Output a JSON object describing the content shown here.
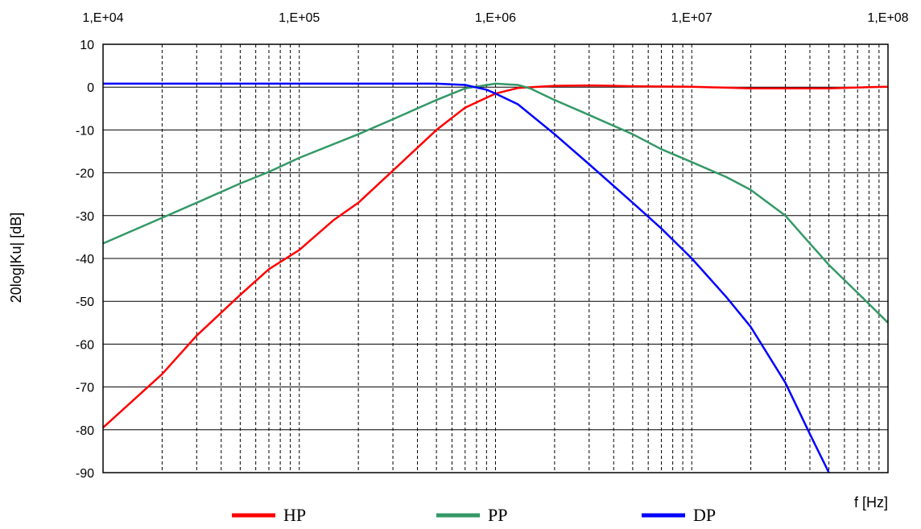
{
  "chart_data": {
    "type": "line",
    "x_scale": "log",
    "xlim": [
      10000,
      100000000
    ],
    "ylim": [
      -90,
      10
    ],
    "ylabel": "20log|Ku| [dB]",
    "xlabel": "f [Hz]",
    "x_ticks": [
      {
        "value": 10000,
        "label": "1,E+04"
      },
      {
        "value": 100000,
        "label": "1,E+05"
      },
      {
        "value": 1000000,
        "label": "1,E+06"
      },
      {
        "value": 10000000,
        "label": "1,E+07"
      },
      {
        "value": 100000000,
        "label": "1,E+08"
      }
    ],
    "y_ticks": [
      {
        "value": 10,
        "label": "10"
      },
      {
        "value": 0,
        "label": "0"
      },
      {
        "value": -10,
        "label": "-10"
      },
      {
        "value": -20,
        "label": "-20"
      },
      {
        "value": -30,
        "label": "-30"
      },
      {
        "value": -40,
        "label": "-40"
      },
      {
        "value": -50,
        "label": "-50"
      },
      {
        "value": -60,
        "label": "-60"
      },
      {
        "value": -70,
        "label": "-70"
      },
      {
        "value": -80,
        "label": "-80"
      },
      {
        "value": -90,
        "label": "-90"
      }
    ],
    "grid": {
      "major_y": true,
      "minor_x_dashed": true
    },
    "legend_position": "bottom",
    "series": [
      {
        "name": "HP",
        "color": "#ff0000",
        "points": [
          [
            10000,
            -79.5
          ],
          [
            20000,
            -67
          ],
          [
            30000,
            -58
          ],
          [
            50000,
            -48.5
          ],
          [
            70000,
            -42.5
          ],
          [
            100000,
            -38
          ],
          [
            150000,
            -31
          ],
          [
            200000,
            -27
          ],
          [
            300000,
            -19.5
          ],
          [
            500000,
            -10
          ],
          [
            700000,
            -4.8
          ],
          [
            1000000,
            -1.5
          ],
          [
            1300000,
            -0.2
          ],
          [
            2000000,
            0.3
          ],
          [
            3000000,
            0.4
          ],
          [
            5000000,
            0.2
          ],
          [
            10000000,
            0.1
          ],
          [
            20000000,
            -0.3
          ],
          [
            50000000,
            -0.3
          ],
          [
            80000000,
            0.0
          ],
          [
            100000000,
            0.1
          ]
        ]
      },
      {
        "name": "PP",
        "color": "#339966",
        "points": [
          [
            10000,
            -36.5
          ],
          [
            20000,
            -30.5
          ],
          [
            30000,
            -27
          ],
          [
            50000,
            -22.5
          ],
          [
            70000,
            -19.8
          ],
          [
            100000,
            -16.5
          ],
          [
            200000,
            -11
          ],
          [
            300000,
            -7.5
          ],
          [
            500000,
            -3
          ],
          [
            700000,
            -0.3
          ],
          [
            1000000,
            0.8
          ],
          [
            1300000,
            0.5
          ],
          [
            1500000,
            -0.3
          ],
          [
            2000000,
            -3
          ],
          [
            3000000,
            -6.5
          ],
          [
            5000000,
            -11
          ],
          [
            7000000,
            -14.5
          ],
          [
            10000000,
            -17.5
          ],
          [
            15000000,
            -21
          ],
          [
            20000000,
            -24
          ],
          [
            30000000,
            -30
          ],
          [
            40000000,
            -36.5
          ],
          [
            50000000,
            -41.5
          ],
          [
            70000000,
            -48
          ],
          [
            100000000,
            -55
          ]
        ]
      },
      {
        "name": "DP",
        "color": "#0000ff",
        "points": [
          [
            10000,
            0.8
          ],
          [
            100000,
            0.8
          ],
          [
            500000,
            0.8
          ],
          [
            700000,
            0.5
          ],
          [
            900000,
            -0.6
          ],
          [
            1000000,
            -1.5
          ],
          [
            1300000,
            -4
          ],
          [
            2000000,
            -11
          ],
          [
            3000000,
            -18
          ],
          [
            5000000,
            -27
          ],
          [
            7000000,
            -33
          ],
          [
            10000000,
            -40
          ],
          [
            15000000,
            -49
          ],
          [
            20000000,
            -56
          ],
          [
            30000000,
            -69
          ],
          [
            40000000,
            -81
          ],
          [
            50000000,
            -90
          ]
        ]
      }
    ]
  }
}
